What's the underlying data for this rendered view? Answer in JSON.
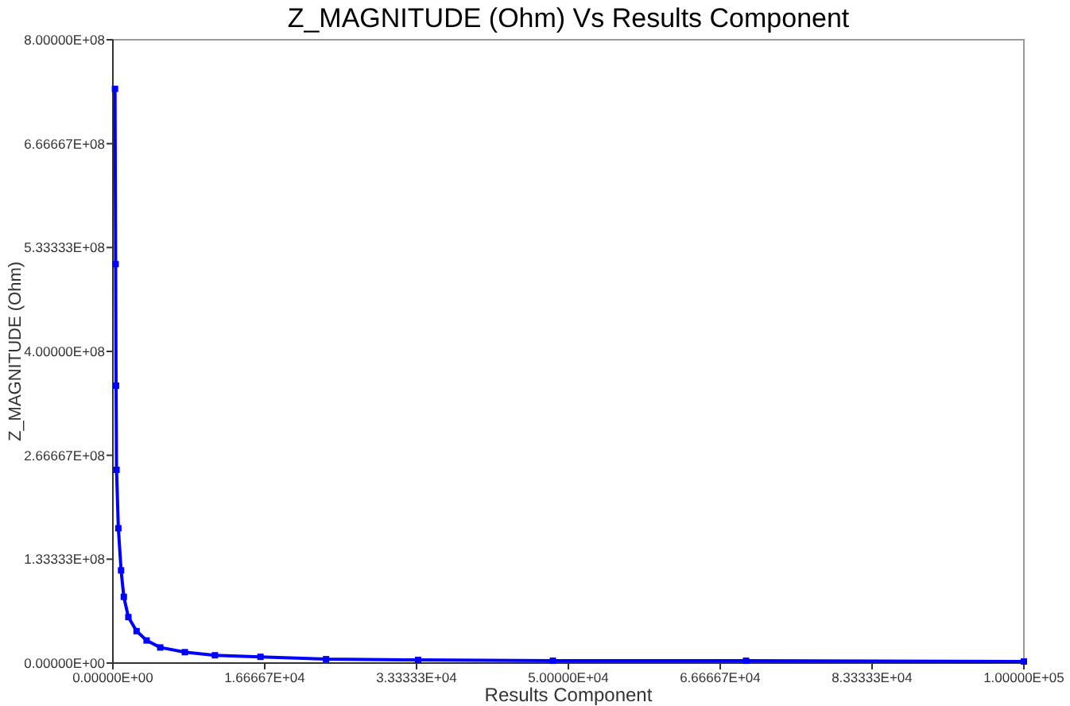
{
  "chart_data": {
    "type": "line",
    "title": "Z_MAGNITUDE (Ohm) Vs Results Component",
    "xlabel": "Results Component",
    "ylabel": "Z_MAGNITUDE (Ohm)",
    "x": [
      230,
      300,
      350,
      400,
      600,
      900,
      1200,
      1700,
      2600,
      3700,
      5200,
      7900,
      11200,
      16200,
      23400,
      33500,
      48300,
      69500,
      100000
    ],
    "series": [
      {
        "color": "#0000ff",
        "values": [
          737000000,
          512000000,
          356000000,
          248000000,
          173000000,
          119000000,
          85000000,
          59000000,
          41000000,
          29000000,
          20000000,
          14000000,
          10000000,
          8000000,
          5000000,
          4000000,
          3000000,
          3000000,
          2000000
        ]
      }
    ],
    "xlim": [
      0,
      100000
    ],
    "ylim": [
      0,
      800000000
    ],
    "xticks": [
      {
        "value": 0,
        "label": "0.00000E+00"
      },
      {
        "value": 16666.7,
        "label": "1.66667E+04"
      },
      {
        "value": 33333.3,
        "label": "3.33333E+04"
      },
      {
        "value": 50000,
        "label": "5.00000E+04"
      },
      {
        "value": 66666.7,
        "label": "6.66667E+04"
      },
      {
        "value": 83333.3,
        "label": "8.33333E+04"
      },
      {
        "value": 100000,
        "label": "1.00000E+05"
      }
    ],
    "yticks": [
      {
        "value": 0,
        "label": "0.00000E+00"
      },
      {
        "value": 133333333,
        "label": "1.33333E+08"
      },
      {
        "value": 266666667,
        "label": "2.66667E+08"
      },
      {
        "value": 400000000,
        "label": "4.00000E+08"
      },
      {
        "value": 533333333,
        "label": "5.33333E+08"
      },
      {
        "value": 666666667,
        "label": "6.66667E+08"
      },
      {
        "value": 800000000,
        "label": "8.00000E+08"
      }
    ],
    "grid": false,
    "marker": "square",
    "line_style": "solid"
  }
}
